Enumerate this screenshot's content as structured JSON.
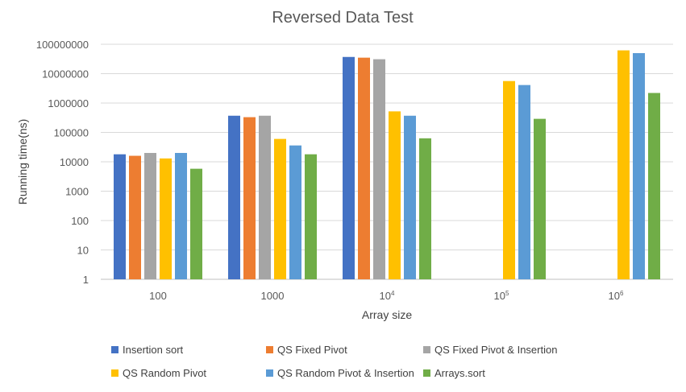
{
  "chart_data": {
    "type": "bar",
    "title": "Reversed Data Test",
    "xlabel": "Array size",
    "ylabel": "Running time(ns)",
    "y_scale": "log",
    "ylim": [
      1,
      100000000
    ],
    "y_ticks": [
      "1",
      "10",
      "100",
      "1000",
      "10000",
      "100000",
      "1000000",
      "10000000",
      "100000000"
    ],
    "categories": [
      {
        "base": "100",
        "exp": ""
      },
      {
        "base": "1000",
        "exp": ""
      },
      {
        "base": "10",
        "exp": "4"
      },
      {
        "base": "10",
        "exp": "5"
      },
      {
        "base": "10",
        "exp": "6"
      }
    ],
    "gridlines": true,
    "legend_position": "bottom",
    "series": [
      {
        "name": "Insertion sort",
        "color": "#4472C4",
        "values": [
          18000,
          370000,
          37000000,
          null,
          null
        ]
      },
      {
        "name": "QS Fixed Pivot",
        "color": "#ED7D31",
        "values": [
          16000,
          330000,
          35000000,
          null,
          null
        ]
      },
      {
        "name": "QS Fixed Pivot & Insertion",
        "color": "#A5A5A5",
        "values": [
          20000,
          370000,
          31000000,
          null,
          null
        ]
      },
      {
        "name": "QS Random Pivot",
        "color": "#FFC000",
        "values": [
          13000,
          60000,
          520000,
          5600000,
          62000000
        ]
      },
      {
        "name": "QS Random Pivot & Insertion",
        "color": "#5B9BD5",
        "values": [
          20000,
          36000,
          370000,
          4100000,
          50000000
        ]
      },
      {
        "name": "Arrays.sort",
        "color": "#70AD47",
        "values": [
          5800,
          18000,
          63000,
          290000,
          2200000
        ]
      }
    ]
  }
}
